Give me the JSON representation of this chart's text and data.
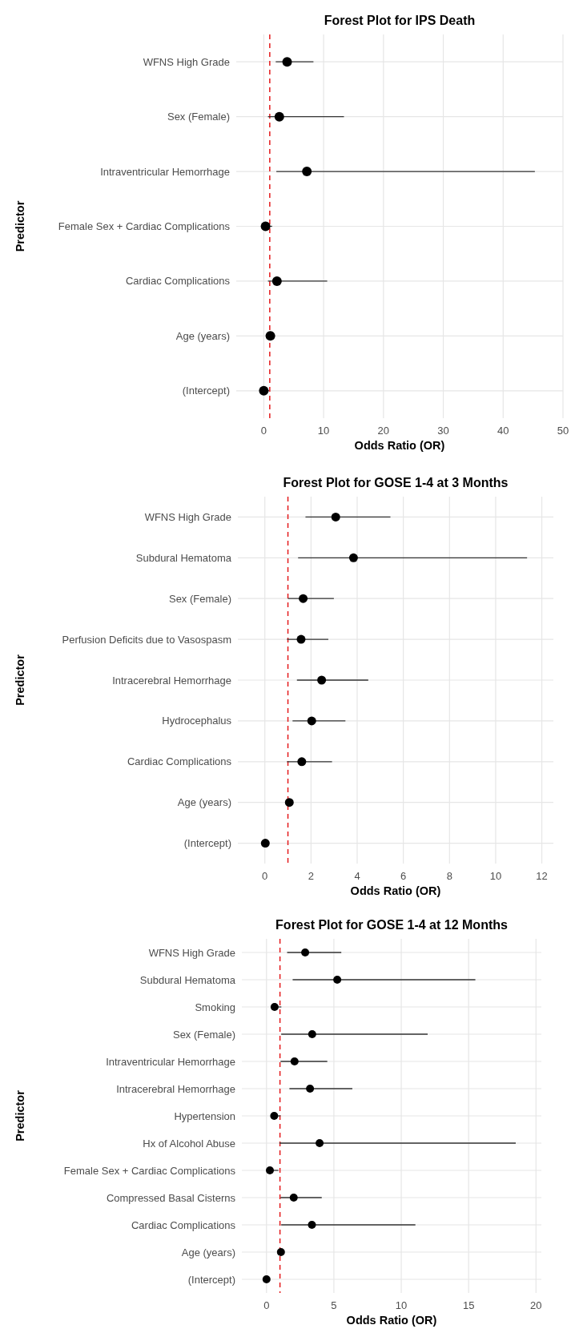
{
  "chart_data": [
    {
      "type": "scatter",
      "orientation": "horizontal",
      "title": "Forest Plot for IPS Death",
      "xlabel": "Odds Ratio (OR)",
      "ylabel": "Predictor",
      "categories": [
        "WFNS High Grade",
        "Sex (Female)",
        "Intraventricular Hemorrhage",
        "Female Sex + Cardiac Complications",
        "Cardiac Complications",
        "Age (years)",
        "(Intercept)"
      ],
      "values": [
        3.9,
        2.6,
        7.2,
        0.3,
        2.2,
        1.1,
        0.0
      ],
      "errors": [
        [
          2.0,
          8.3
        ],
        [
          0.7,
          13.4
        ],
        [
          2.1,
          45.3
        ],
        [
          0.05,
          1.4
        ],
        [
          0.7,
          10.6
        ],
        null,
        [
          0.0,
          0.9
        ]
      ],
      "color": "#000000",
      "xlim": [
        -4.6,
        50
      ],
      "xticks": [
        0,
        10,
        20,
        30,
        40,
        50
      ],
      "grid": true,
      "marker": "circle",
      "ref_lines": [
        {
          "axis": "x",
          "value": 1,
          "color": "#e41a1c",
          "line_style": "dashed"
        }
      ]
    },
    {
      "type": "scatter",
      "orientation": "horizontal",
      "title": "Forest Plot for GOSE 1-4 at 3 Months",
      "xlabel": "Odds Ratio (OR)",
      "ylabel": "Predictor",
      "categories": [
        "WFNS High Grade",
        "Subdural Hematoma",
        "Sex (Female)",
        "Perfusion Deficits due to Vasospasm",
        "Intracerebral Hemorrhage",
        "Hydrocephalus",
        "Cardiac Complications",
        "Age (years)",
        "(Intercept)"
      ],
      "values": [
        3.07,
        3.84,
        1.66,
        1.57,
        2.46,
        2.03,
        1.6,
        1.06,
        0.02
      ],
      "errors": [
        [
          1.76,
          5.44
        ],
        [
          1.44,
          11.36
        ],
        [
          1.0,
          2.99
        ],
        [
          0.96,
          2.75
        ],
        [
          1.39,
          4.48
        ],
        [
          1.2,
          3.49
        ],
        [
          0.96,
          2.91
        ],
        null,
        null
      ],
      "color": "#000000",
      "xlim": [
        -1.17,
        12.5
      ],
      "xticks": [
        0,
        2,
        4,
        6,
        8,
        10,
        12
      ],
      "grid": true,
      "marker": "circle",
      "ref_lines": [
        {
          "axis": "x",
          "value": 1,
          "color": "#e41a1c",
          "line_style": "dashed"
        }
      ]
    },
    {
      "type": "scatter",
      "orientation": "horizontal",
      "title": "Forest Plot for GOSE 1-4 at 12 Months",
      "xlabel": "Odds Ratio (OR)",
      "ylabel": "Predictor",
      "categories": [
        "WFNS High Grade",
        "Subdural Hematoma",
        "Smoking",
        "Sex (Female)",
        "Intraventricular Hemorrhage",
        "Intracerebral Hemorrhage",
        "Hypertension",
        "Hx of Alcohol Abuse",
        "Female Sex + Cardiac Complications",
        "Compressed Basal Cisterns",
        "Cardiac Complications",
        "Age (years)",
        "(Intercept)"
      ],
      "values": [
        2.87,
        5.25,
        0.6,
        3.39,
        2.08,
        3.23,
        0.57,
        3.94,
        0.25,
        2.02,
        3.37,
        1.07,
        0.0
      ],
      "errors": [
        [
          1.53,
          5.55
        ],
        [
          1.94,
          15.5
        ],
        [
          0.38,
          1.1
        ],
        [
          1.09,
          11.96
        ],
        [
          1.04,
          4.51
        ],
        [
          1.7,
          6.37
        ],
        [
          0.36,
          1.04
        ],
        [
          0.96,
          18.5
        ],
        [
          0.0,
          0.88
        ],
        [
          1.04,
          4.1
        ],
        [
          1.09,
          11.05
        ],
        null,
        null
      ],
      "color": "#000000",
      "xlim": [
        -1.83,
        20.4
      ],
      "xticks": [
        0,
        5,
        10,
        15,
        20
      ],
      "grid": true,
      "marker": "circle",
      "ref_lines": [
        {
          "axis": "x",
          "value": 1,
          "color": "#e41a1c",
          "line_style": "dashed"
        }
      ]
    }
  ]
}
